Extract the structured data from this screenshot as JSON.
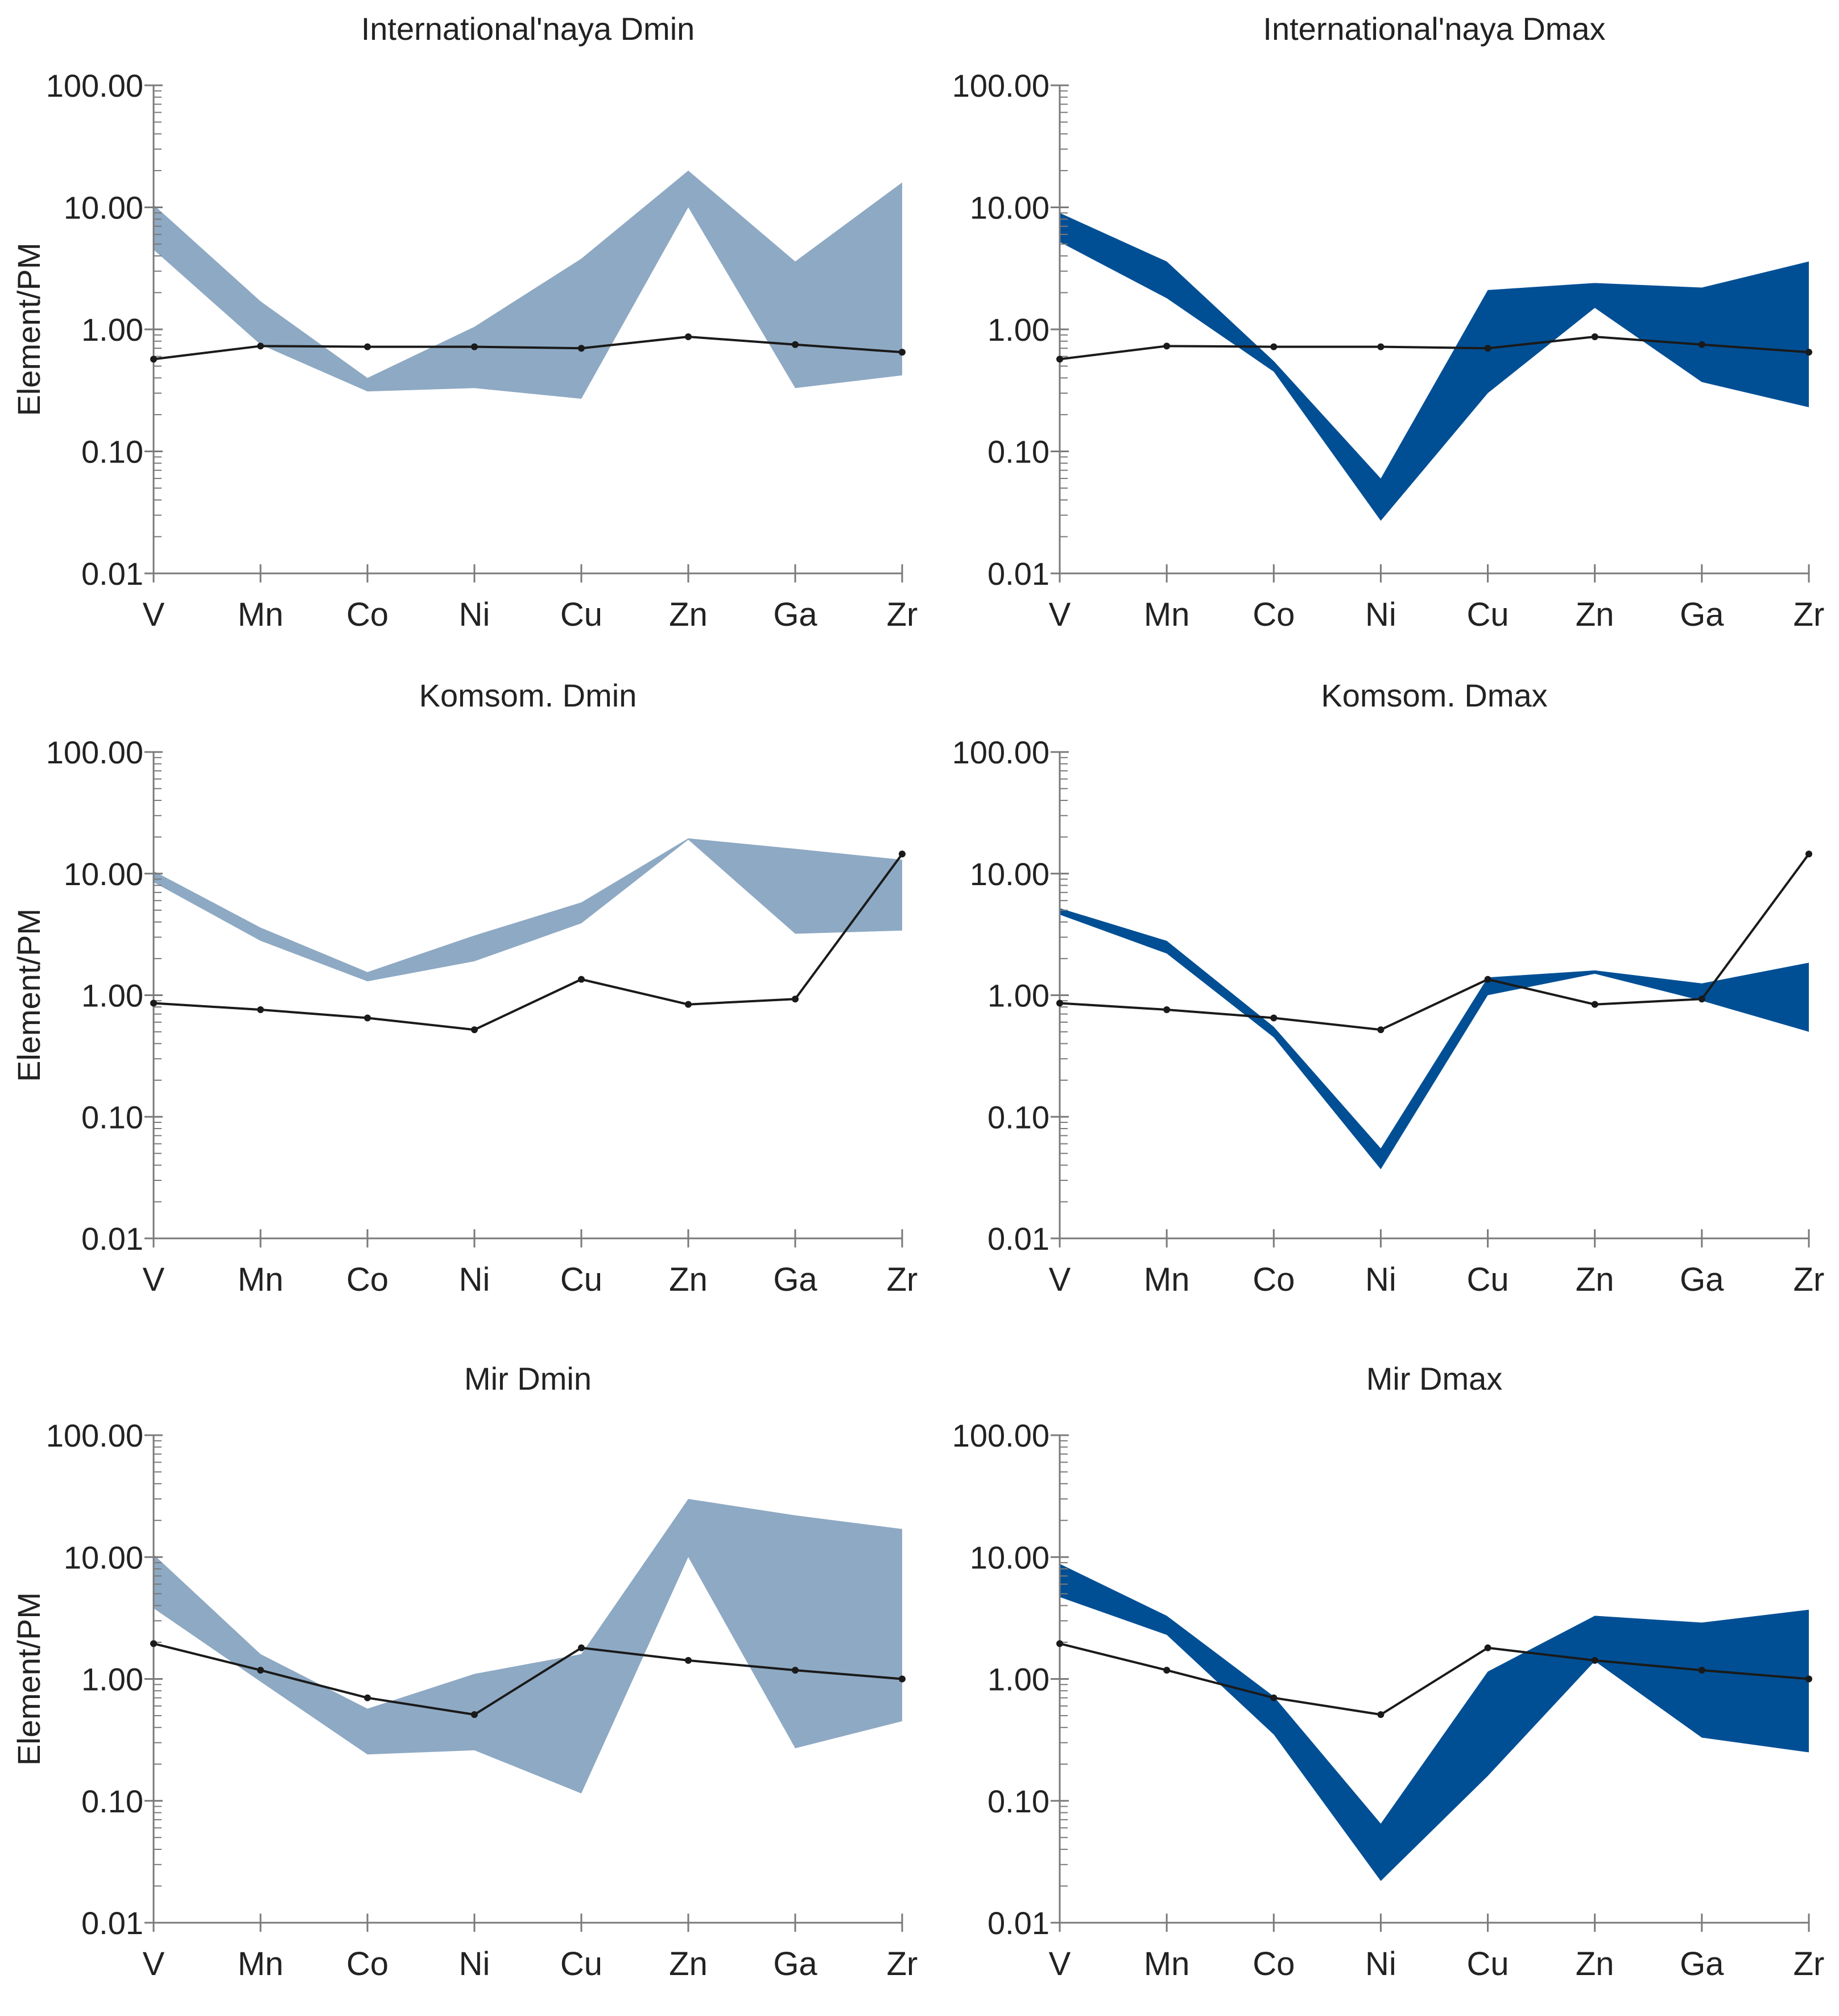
{
  "chart_data": [
    {
      "type": "area",
      "title": "International'naya Dmin",
      "ylabel": "Element/PM",
      "show_ylabel": true,
      "yscale": "log",
      "ylim": [
        0.01,
        100
      ],
      "yticks": [
        "100.00",
        "10.00",
        "1.00",
        "0.10",
        "0.01"
      ],
      "categories": [
        "V",
        "Mn",
        "Co",
        "Ni",
        "Cu",
        "Zn",
        "Ga",
        "Zr"
      ],
      "band_color": "#8ea9c3",
      "band_upper": [
        10.5,
        1.7,
        0.4,
        1.05,
        3.8,
        20,
        3.6,
        16
      ],
      "band_lower": [
        4.5,
        0.75,
        0.31,
        0.33,
        0.27,
        10,
        0.33,
        0.42
      ],
      "line": [
        0.57,
        0.73,
        0.72,
        0.72,
        0.7,
        0.87,
        0.75,
        0.65
      ]
    },
    {
      "type": "area",
      "title": "International'naya Dmax",
      "ylabel": "Element/PM",
      "show_ylabel": false,
      "yscale": "log",
      "ylim": [
        0.01,
        100
      ],
      "yticks": [
        "100.00",
        "10.00",
        "1.00",
        "0.10",
        "0.01"
      ],
      "categories": [
        "V",
        "Mn",
        "Co",
        "Ni",
        "Cu",
        "Zn",
        "Ga",
        "Zr"
      ],
      "band_color": "#004f95",
      "band_upper": [
        9,
        3.6,
        0.55,
        0.06,
        2.1,
        2.4,
        2.2,
        3.6
      ],
      "band_lower": [
        5.2,
        1.8,
        0.45,
        0.027,
        0.3,
        1.5,
        0.37,
        0.23
      ],
      "line": [
        0.57,
        0.73,
        0.72,
        0.72,
        0.7,
        0.87,
        0.75,
        0.65
      ]
    },
    {
      "type": "area",
      "title": "Komsom. Dmin",
      "ylabel": "Element/PM",
      "show_ylabel": true,
      "yscale": "log",
      "ylim": [
        0.01,
        100
      ],
      "yticks": [
        "100.00",
        "10.00",
        "1.00",
        "0.10",
        "0.01"
      ],
      "categories": [
        "V",
        "Mn",
        "Co",
        "Ni",
        "Cu",
        "Zn",
        "Ga",
        "Zr"
      ],
      "band_color": "#8ea9c3",
      "band_upper": [
        10.5,
        3.6,
        1.55,
        3.1,
        5.8,
        19.5,
        16,
        13
      ],
      "band_lower": [
        8.5,
        2.8,
        1.3,
        1.9,
        3.9,
        19,
        3.2,
        3.4
      ],
      "line": [
        0.86,
        0.76,
        0.65,
        0.52,
        1.35,
        0.84,
        0.93,
        14.5
      ]
    },
    {
      "type": "area",
      "title": "Komsom. Dmax",
      "ylabel": "Element/PM",
      "show_ylabel": false,
      "yscale": "log",
      "ylim": [
        0.01,
        100
      ],
      "yticks": [
        "100.00",
        "10.00",
        "1.00",
        "0.10",
        "0.01"
      ],
      "categories": [
        "V",
        "Mn",
        "Co",
        "Ni",
        "Cu",
        "Zn",
        "Ga",
        "Zr"
      ],
      "band_color": "#004f95",
      "band_upper": [
        5.2,
        2.8,
        0.55,
        0.055,
        1.4,
        1.6,
        1.25,
        1.85
      ],
      "band_lower": [
        4.6,
        2.2,
        0.45,
        0.037,
        1.0,
        1.5,
        0.9,
        0.5
      ],
      "line": [
        0.86,
        0.76,
        0.65,
        0.52,
        1.35,
        0.84,
        0.93,
        14.5
      ]
    },
    {
      "type": "area",
      "title": "Mir Dmin",
      "ylabel": "Element/PM",
      "show_ylabel": true,
      "yscale": "log",
      "ylim": [
        0.01,
        100
      ],
      "yticks": [
        "100.00",
        "10.00",
        "1.00",
        "0.10",
        "0.01"
      ],
      "categories": [
        "V",
        "Mn",
        "Co",
        "Ni",
        "Cu",
        "Zn",
        "Ga",
        "Zr"
      ],
      "band_color": "#8ea9c3",
      "band_upper": [
        10.5,
        1.6,
        0.57,
        1.1,
        1.6,
        30,
        22,
        17
      ],
      "band_lower": [
        3.8,
        0.95,
        0.24,
        0.26,
        0.115,
        10,
        0.27,
        0.45
      ],
      "line": [
        1.95,
        1.18,
        0.7,
        0.51,
        1.8,
        1.42,
        1.18,
        1.0
      ]
    },
    {
      "type": "area",
      "title": "Mir Dmax",
      "ylabel": "Element/PM",
      "show_ylabel": false,
      "yscale": "log",
      "ylim": [
        0.01,
        100
      ],
      "yticks": [
        "100.00",
        "10.00",
        "1.00",
        "0.10",
        "0.01"
      ],
      "categories": [
        "V",
        "Mn",
        "Co",
        "Ni",
        "Cu",
        "Zn",
        "Ga",
        "Zr"
      ],
      "band_color": "#004f95",
      "band_upper": [
        8.8,
        3.3,
        0.72,
        0.065,
        1.15,
        3.3,
        2.9,
        3.7
      ],
      "band_lower": [
        4.7,
        2.3,
        0.35,
        0.022,
        0.16,
        1.4,
        0.33,
        0.25
      ],
      "line": [
        1.95,
        1.18,
        0.7,
        0.51,
        1.8,
        1.42,
        1.18,
        1.0
      ]
    }
  ]
}
